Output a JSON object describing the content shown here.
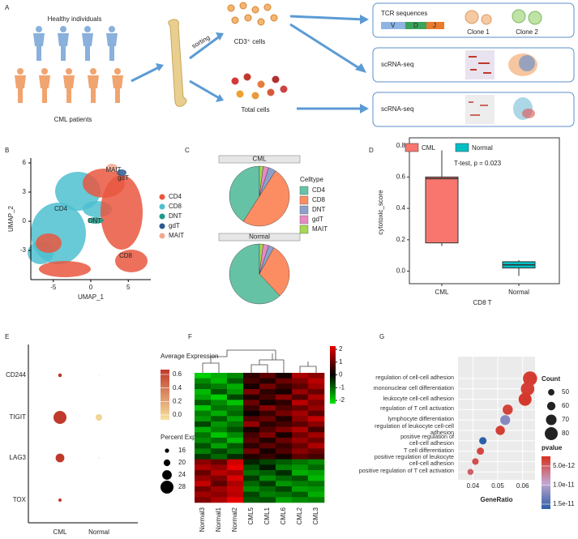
{
  "diagram": {
    "label": "A",
    "healthy": "Healthy individuals",
    "patients": "CML patients",
    "sorting": "sorting",
    "cd3_cells": "CD3⁺ cells",
    "total_cells": "Total cells",
    "tcr": "TCR sequences",
    "v": "V",
    "d": "D",
    "j": "J",
    "clone1": "Clone 1",
    "clone2": "Clone 2",
    "scrna1": "scRNA-seq",
    "scrna2": "scRNA-seq"
  },
  "chart_data": [
    {
      "type": "scatter",
      "label": "B",
      "xlabel": "UMAP_1",
      "ylabel": "UMAP_2",
      "xlim": [
        -8,
        8
      ],
      "xticks": [
        -5,
        0,
        5
      ],
      "ylim": [
        -6,
        6.5
      ],
      "yticks": [
        -3,
        0,
        3,
        6
      ],
      "series": [
        {
          "name": "CD4",
          "color": "#e9573f"
        },
        {
          "name": "CD8",
          "color": "#4dbfd0"
        },
        {
          "name": "DNT",
          "color": "#1a9b8a"
        },
        {
          "name": "gdT",
          "color": "#2c5a8f"
        },
        {
          "name": "MAIT",
          "color": "#f4a890"
        }
      ],
      "annotations": [
        "CD4",
        "CD8",
        "DNT",
        "gdT",
        "MAIT"
      ]
    },
    {
      "type": "pie",
      "label": "C",
      "legend_title": "Celltype",
      "categories": [
        "CD4",
        "CD8",
        "DNT",
        "gdT",
        "MAIT"
      ],
      "colors": [
        "#66c2a5",
        "#fc8d62",
        "#8da0cb",
        "#e78ac3",
        "#a6d854"
      ],
      "pies": [
        {
          "title": "CML",
          "values": [
            41,
            50,
            4,
            3,
            2
          ]
        },
        {
          "title": "Normal",
          "values": [
            62,
            30,
            3,
            3,
            2
          ]
        }
      ]
    },
    {
      "type": "box",
      "label": "D",
      "ylabel": "cytotoxic_score",
      "xlabel": "CD8 T",
      "annotation": "T-test, p = 0.023",
      "ylim": [
        -0.08,
        0.85
      ],
      "yticks": [
        {
          "value": 0,
          "label": "0.0"
        },
        {
          "value": 0.2,
          "label": "0.2"
        },
        {
          "value": 0.4,
          "label": "0.4"
        },
        {
          "value": 0.6,
          "label": "0.6"
        },
        {
          "value": 0.8,
          "label": "0.8"
        }
      ],
      "series": [
        {
          "name": "CML",
          "color": "#f8766d",
          "values": {
            "min": 0.16,
            "q1": 0.18,
            "median": 0.59,
            "q3": 0.6,
            "max": 0.77
          }
        },
        {
          "name": "Normal",
          "color": "#00bfc4",
          "values": {
            "min": -0.03,
            "q1": 0.02,
            "median": 0.04,
            "q3": 0.06,
            "max": 0.07
          }
        }
      ]
    },
    {
      "type": "dot",
      "label": "E",
      "categories": [
        "CD244",
        "TIGIT",
        "LAG3",
        "TOX"
      ],
      "series": [
        {
          "name": "CML",
          "values": [
            0.65,
            0.7,
            0.65,
            0.65
          ],
          "sizes": [
            15,
            28,
            23,
            14
          ]
        },
        {
          "name": "Normal",
          "values": [
            0.0,
            0.05,
            0.1,
            null
          ],
          "sizes": [
            2,
            20,
            4,
            null
          ]
        }
      ],
      "color_title": "Average Expression",
      "color_low": "#f6e3a0",
      "color_high": "#c0392b",
      "colorticks": [
        {
          "value": 0,
          "label": "0.0"
        },
        {
          "value": 0.2,
          "label": "0.2"
        },
        {
          "value": 0.4,
          "label": "0.4"
        },
        {
          "value": 0.6,
          "label": "0.6"
        }
      ],
      "size_title": "Percent Expressed",
      "sizeticks": [
        16,
        20,
        24,
        28
      ]
    },
    {
      "type": "heatmap",
      "label": "F",
      "columns": [
        "Normal3",
        "Normal1",
        "Normal2",
        "CML5",
        "CML1",
        "CML6",
        "CML2",
        "CML3"
      ],
      "colorticks": [
        2,
        1,
        0,
        -1,
        -2
      ],
      "values": [
        [
          -1.8,
          -1.5,
          -1.2,
          0.4,
          0.8,
          0.2,
          1.5,
          1.2
        ],
        [
          -1.2,
          -1.6,
          -0.8,
          0.6,
          0.3,
          0.9,
          1.1,
          1.6
        ],
        [
          -0.9,
          -1.1,
          -1.5,
          0.2,
          1.0,
          0.5,
          0.8,
          1.4
        ],
        [
          -1.6,
          -0.7,
          -1.3,
          1.1,
          0.4,
          0.2,
          1.3,
          0.9
        ],
        [
          -1.4,
          -1.8,
          -0.6,
          0.3,
          0.6,
          1.2,
          0.7,
          1.5
        ],
        [
          -0.8,
          -1.2,
          -1.7,
          0.9,
          0.2,
          0.4,
          1.6,
          1.1
        ],
        [
          -1.7,
          -1.0,
          -1.1,
          0.5,
          1.2,
          0.7,
          0.9,
          1.3
        ],
        [
          -1.1,
          -1.5,
          -0.9,
          0.1,
          0.5,
          1.0,
          1.4,
          0.8
        ],
        [
          -1.3,
          -0.8,
          -1.4,
          0.7,
          0.9,
          0.3,
          1.2,
          1.7
        ],
        [
          -0.6,
          -1.3,
          -1.0,
          1.3,
          0.4,
          0.6,
          0.8,
          1.2
        ],
        [
          -1.5,
          -1.1,
          -0.7,
          0.2,
          0.7,
          1.1,
          1.5,
          0.6
        ],
        [
          -1.0,
          -1.7,
          -1.2,
          0.6,
          1.1,
          0.2,
          1.0,
          1.4
        ],
        [
          -1.2,
          -0.9,
          -1.6,
          0.8,
          0.3,
          0.9,
          1.3,
          1.0
        ],
        [
          -0.7,
          -1.4,
          -0.8,
          0.4,
          0.8,
          0.5,
          0.9,
          1.5
        ],
        [
          -1.1,
          -0.6,
          -1.0,
          1.0,
          0.2,
          0.7,
          1.2,
          0.9
        ],
        [
          -0.5,
          -0.9,
          -0.4,
          0.3,
          0.5,
          0.2,
          0.8,
          0.6
        ],
        [
          1.2,
          0.9,
          1.8,
          -0.3,
          -0.6,
          -0.8,
          -1.0,
          -1.2
        ],
        [
          1.5,
          1.3,
          2.0,
          -0.7,
          -0.2,
          -1.1,
          -1.3,
          -0.9
        ],
        [
          0.9,
          1.6,
          1.4,
          -1.0,
          -0.8,
          -0.4,
          -1.5,
          -1.4
        ],
        [
          1.3,
          1.1,
          1.9,
          -0.5,
          -1.2,
          -0.9,
          -0.7,
          -1.6
        ],
        [
          1.7,
          0.8,
          1.5,
          -0.9,
          -0.5,
          -1.3,
          -1.1,
          -1.0
        ],
        [
          1.0,
          1.4,
          1.7,
          -1.2,
          -0.9,
          -0.6,
          -1.4,
          -1.3
        ],
        [
          1.4,
          1.2,
          1.6,
          -0.6,
          -1.1,
          -1.0,
          -0.8,
          -1.5
        ],
        [
          1.1,
          1.5,
          2.0,
          -0.8,
          -0.7,
          -1.4,
          -1.2,
          -1.1
        ]
      ]
    },
    {
      "type": "enrichment",
      "label": "G",
      "xlabel": "GeneRatio",
      "xlim": [
        0.034,
        0.065
      ],
      "xticks": [
        0.04,
        0.05,
        0.06
      ],
      "categories": [
        "regulation of cell-cell adhesion",
        "mononuclear cell differentiation",
        "leukocyte cell-cell adhesion",
        "regulation of T cell activation",
        "lymphocyte differentiation",
        "regulation of leukocyte cell-cell\nadhesion",
        "positive regulation of\ncell-cell adhesion",
        "T cell differentiation",
        "positive regulation of leukocyte\ncell-cell adhesion",
        "positive regulation of T cell activation"
      ],
      "values": [
        0.063,
        0.062,
        0.061,
        0.054,
        0.053,
        0.051,
        0.044,
        0.043,
        0.041,
        0.039
      ],
      "count": [
        85,
        82,
        80,
        68,
        67,
        64,
        55,
        54,
        51,
        48
      ],
      "pvalue": [
        5.5e-12,
        5.6e-12,
        5.4e-12,
        5.8e-12,
        1.2e-11,
        5.6e-12,
        1.6e-11,
        5.9e-12,
        6.3e-12,
        7e-12
      ],
      "size_title": "Count",
      "sizeticks": [
        50,
        60,
        70,
        80
      ],
      "color_title": "pvalue",
      "colorticks": [
        {
          "value": 5e-12,
          "label": "5.0e-12"
        },
        {
          "value": 1e-11,
          "label": "1.0e-11"
        },
        {
          "value": 1.5e-11,
          "label": "1.5e-11"
        }
      ]
    }
  ]
}
